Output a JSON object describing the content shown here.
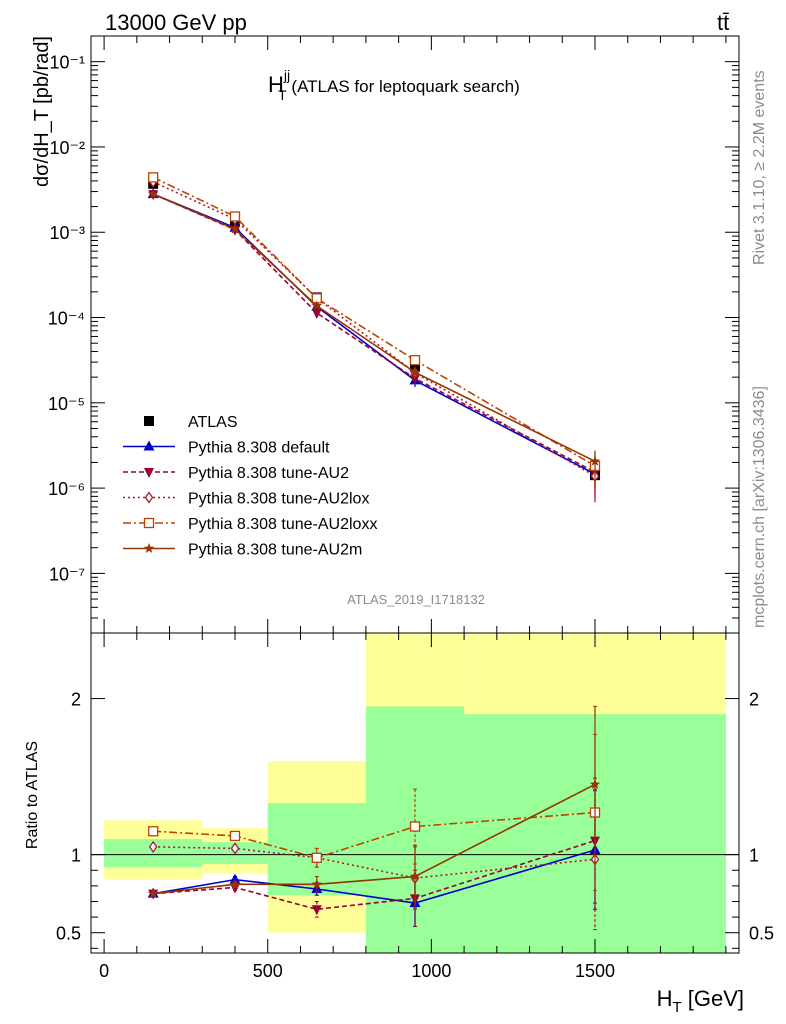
{
  "header": {
    "left": "13000 GeV pp",
    "right": "tt̄"
  },
  "side_labels": {
    "rivet": "Rivet 3.1.10, ≥ 2.2M events",
    "mcplots": "mcplots.cern.ch [arXiv:1306.3436]"
  },
  "analysis_id": "ATLAS_2019_I1718132",
  "colors": {
    "data": "#000000",
    "default": "#0000cc",
    "au2": "#990033",
    "au2lox": "#aa1a33",
    "au2loxx": "#bb4400",
    "au2m": "#993300",
    "band_inner": "#99ff99",
    "band_outer": "#ffff99"
  },
  "chart_data": [
    {
      "type": "line",
      "title_main": "H",
      "title_sup": "jj",
      "title_sub": "T",
      "title_rest": " (ATLAS for leptoquark search)",
      "ylabel": "dσ/dH_T [pb/rad]",
      "yscale": "log",
      "ylim": [
        2e-08,
        0.2
      ],
      "xlim": [
        -40,
        1940
      ],
      "y_ticks": [
        "10⁻¹",
        "10⁻²",
        "10⁻³",
        "10⁻⁴",
        "10⁻⁵",
        "10⁻⁶",
        "10⁻⁷"
      ],
      "x": [
        150,
        400,
        650,
        950,
        1500
      ],
      "series": [
        {
          "name": "ATLAS",
          "key": "data",
          "values": [
            0.0037,
            0.00135,
            0.000172,
            2.65e-05,
            1.42e-06
          ],
          "err": [
            0.0001,
            6e-05,
            1e-05,
            4e-06,
            4e-07
          ]
        },
        {
          "name": "Pythia 8.308 default",
          "key": "default",
          "values": [
            0.0028,
            0.00113,
            0.000134,
            1.83e-05,
            1.46e-06
          ],
          "err": [
            5e-05,
            3e-05,
            6e-06,
            3e-06,
            5e-07
          ]
        },
        {
          "name": "Pythia 8.308 tune-AU2",
          "key": "au2",
          "values": [
            0.0028,
            0.00107,
            0.000113,
            1.93e-05,
            1.54e-06
          ],
          "err": [
            5e-05,
            3e-05,
            6e-06,
            3e-06,
            8e-07
          ]
        },
        {
          "name": "Pythia 8.308 tune-AU2lox",
          "key": "au2lox",
          "values": [
            0.0039,
            0.00142,
            0.000169,
            2.25e-05,
            1.38e-06
          ],
          "err": [
            6e-05,
            4e-05,
            7e-06,
            3e-06,
            7e-07
          ]
        },
        {
          "name": "Pythia 8.308 tune-AU2loxx",
          "key": "au2loxx",
          "values": [
            0.0044,
            0.00153,
            0.000168,
            3.16e-05,
            1.82e-06
          ],
          "err": [
            6e-05,
            4e-05,
            7e-06,
            4e-06,
            8e-07
          ]
        },
        {
          "name": "Pythia 8.308 tune-AU2m",
          "key": "au2m",
          "values": [
            0.0028,
            0.00109,
            0.000137,
            2.28e-05,
            2.06e-06
          ],
          "err": [
            5e-05,
            3e-05,
            6e-06,
            3e-06,
            7e-07
          ]
        }
      ],
      "legend_position": "bottom-left"
    },
    {
      "type": "line",
      "ylabel": "Ratio to ATLAS",
      "xlabel_main": "H",
      "xlabel_sub": "T",
      "xlabel_rest": " [GeV]",
      "ylim": [
        0.37,
        2.42
      ],
      "y_ticks": [
        "0.5",
        "1",
        "2"
      ],
      "y_tick_values": [
        0.5,
        1,
        2
      ],
      "x_ticks": [
        "0",
        "500",
        "1000",
        "1500"
      ],
      "x_tick_values": [
        0,
        500,
        1000,
        1500
      ],
      "bands": [
        {
          "x0": 0,
          "x1": 300,
          "inner": [
            0.92,
            1.1
          ],
          "outer": [
            0.84,
            1.22
          ]
        },
        {
          "x0": 300,
          "x1": 500,
          "inner": [
            0.94,
            1.08
          ],
          "outer": [
            0.88,
            1.17
          ]
        },
        {
          "x0": 500,
          "x1": 800,
          "inner": [
            0.74,
            1.33
          ],
          "outer": [
            0.5,
            1.6
          ]
        },
        {
          "x0": 800,
          "x1": 1100,
          "inner": [
            0.37,
            1.95
          ],
          "outer": [
            0.37,
            2.42
          ]
        },
        {
          "x0": 1100,
          "x1": 1900,
          "inner": [
            0.37,
            1.9
          ],
          "outer": [
            0.37,
            2.42
          ]
        }
      ],
      "series": [
        {
          "key": "default",
          "values": [
            0.75,
            0.84,
            0.78,
            0.69,
            1.03
          ],
          "err": [
            0.01,
            0.02,
            0.04,
            0.15,
            0.38
          ]
        },
        {
          "key": "au2",
          "values": [
            0.75,
            0.79,
            0.65,
            0.72,
            1.09
          ],
          "err": [
            0.01,
            0.02,
            0.05,
            0.18,
            0.4
          ]
        },
        {
          "key": "au2lox",
          "values": [
            1.05,
            1.04,
            0.98,
            0.85,
            0.97
          ],
          "err": [
            0.01,
            0.02,
            0.06,
            0.2,
            0.45
          ]
        },
        {
          "key": "au2loxx",
          "values": [
            1.15,
            1.12,
            0.98,
            1.18,
            1.27
          ],
          "err": [
            0.01,
            0.02,
            0.06,
            0.24,
            0.5
          ]
        },
        {
          "key": "au2m",
          "values": [
            0.75,
            0.81,
            0.81,
            0.86,
            1.45
          ],
          "err": [
            0.01,
            0.02,
            0.05,
            0.2,
            0.5
          ]
        }
      ]
    }
  ]
}
